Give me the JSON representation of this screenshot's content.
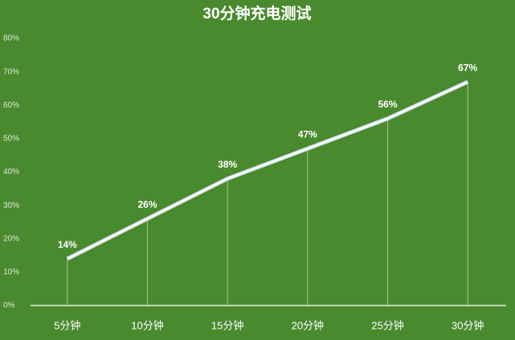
{
  "chart_data": {
    "type": "line",
    "title": "30分钟充电测试",
    "categories": [
      "5分钟",
      "10分钟",
      "15分钟",
      "20分钟",
      "25分钟",
      "30分钟"
    ],
    "values": [
      14,
      26,
      38,
      47,
      56,
      67
    ],
    "value_labels": [
      "14%",
      "26%",
      "38%",
      "47%",
      "56%",
      "67%"
    ],
    "color": "#ffffff",
    "ylim": [
      0,
      80
    ],
    "yticks": [
      {
        "value": 0,
        "label": "0%"
      },
      {
        "value": 10,
        "label": "10%"
      },
      {
        "value": 20,
        "label": "20%"
      },
      {
        "value": 30,
        "label": "30%"
      },
      {
        "value": 40,
        "label": "40%"
      },
      {
        "value": 50,
        "label": "50%"
      },
      {
        "value": 60,
        "label": "60%"
      },
      {
        "value": 70,
        "label": "70%"
      },
      {
        "value": 80,
        "label": "80%"
      }
    ],
    "grid": false
  }
}
